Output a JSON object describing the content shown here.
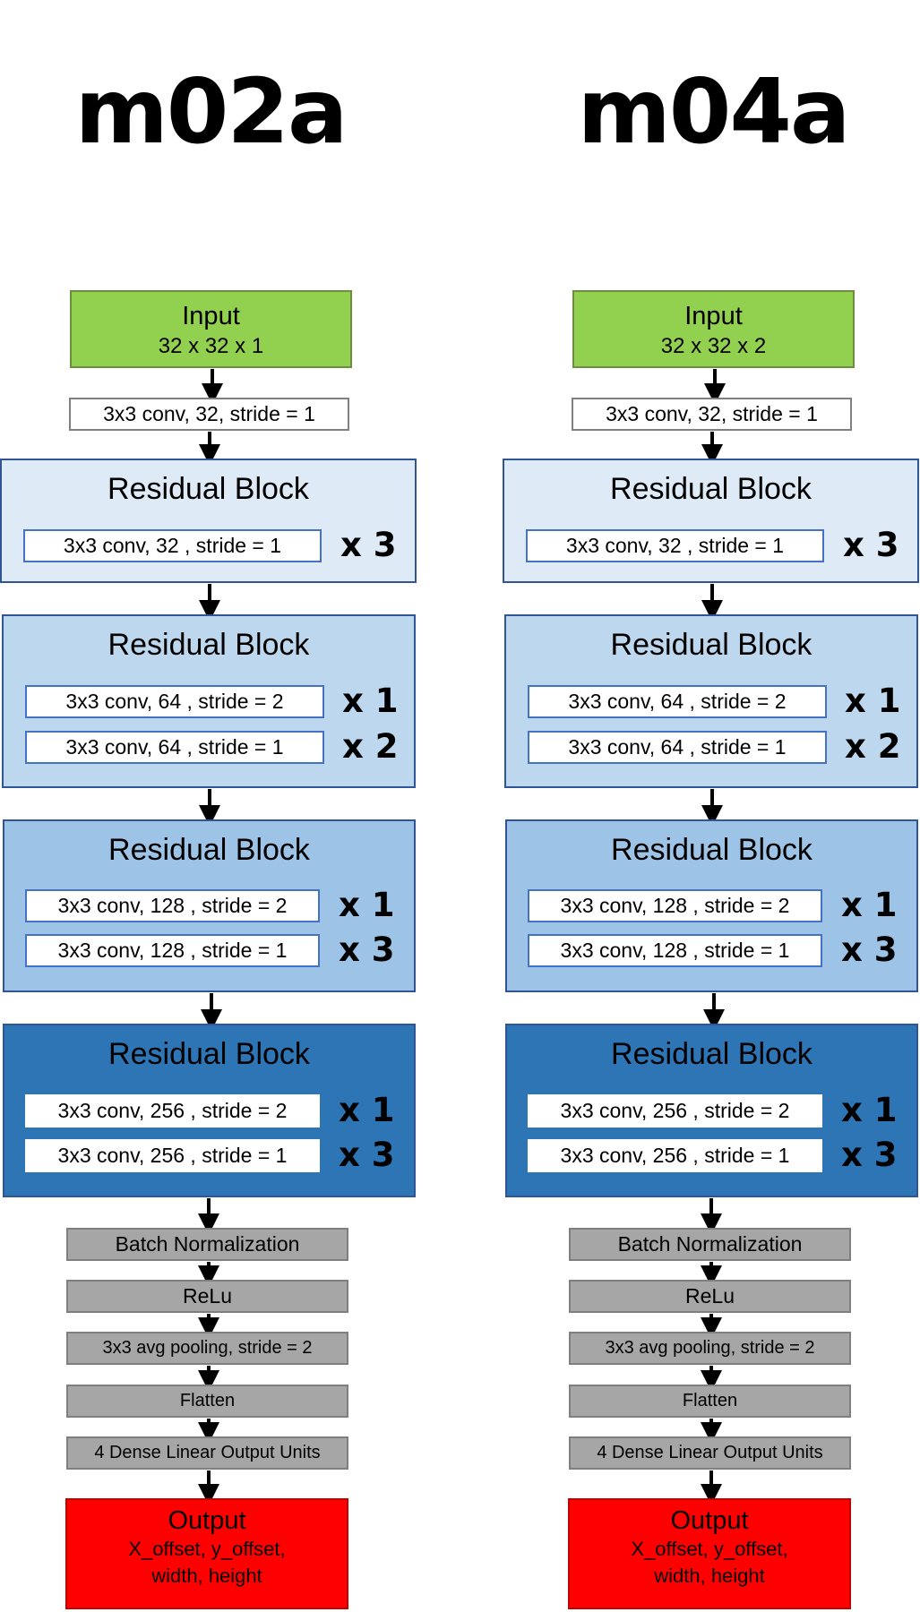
{
  "columns": [
    {
      "title": "m02a",
      "input": {
        "label": "Input",
        "shape": "32 x 32 x 1"
      },
      "first_conv": "3x3 conv, 32, stride = 1",
      "blocks": [
        {
          "title": "Residual Block",
          "layers": [
            {
              "label": "3x3 conv, 32 , stride = 1",
              "mult": "x 3"
            }
          ]
        },
        {
          "title": "Residual Block",
          "layers": [
            {
              "label": "3x3 conv, 64 , stride = 2",
              "mult": "x 1"
            },
            {
              "label": "3x3 conv, 64 , stride = 1",
              "mult": "x 2"
            }
          ]
        },
        {
          "title": "Residual Block",
          "layers": [
            {
              "label": "3x3 conv, 128 , stride = 2",
              "mult": "x 1"
            },
            {
              "label": "3x3 conv, 128 , stride = 1",
              "mult": "x 3"
            }
          ]
        },
        {
          "title": "Residual Block",
          "layers": [
            {
              "label": "3x3 conv, 256 , stride = 2",
              "mult": "x 1"
            },
            {
              "label": "3x3 conv, 256 , stride = 1",
              "mult": "x 3"
            }
          ]
        }
      ],
      "post": [
        "Batch Normalization",
        "ReLu",
        "3x3 avg pooling, stride = 2",
        "Flatten",
        "4 Dense Linear Output Units"
      ],
      "output": {
        "label": "Output",
        "line1": "X_offset, y_offset,",
        "line2": "width, height"
      }
    },
    {
      "title": "m04a",
      "input": {
        "label": "Input",
        "shape": "32 x 32 x 2"
      },
      "first_conv": "3x3 conv, 32, stride = 1",
      "blocks": [
        {
          "title": "Residual Block",
          "layers": [
            {
              "label": "3x3 conv, 32 , stride = 1",
              "mult": "x 3"
            }
          ]
        },
        {
          "title": "Residual Block",
          "layers": [
            {
              "label": "3x3 conv, 64 , stride = 2",
              "mult": "x 1"
            },
            {
              "label": "3x3 conv, 64 , stride = 1",
              "mult": "x 2"
            }
          ]
        },
        {
          "title": "Residual Block",
          "layers": [
            {
              "label": "3x3 conv, 128 , stride = 2",
              "mult": "x 1"
            },
            {
              "label": "3x3 conv, 128 , stride = 1",
              "mult": "x 3"
            }
          ]
        },
        {
          "title": "Residual Block",
          "layers": [
            {
              "label": "3x3 conv, 256 , stride = 2",
              "mult": "x 1"
            },
            {
              "label": "3x3 conv, 256 , stride = 1",
              "mult": "x 3"
            }
          ]
        }
      ],
      "post": [
        "Batch Normalization",
        "ReLu",
        "3x3 avg pooling, stride = 2",
        "Flatten",
        "4 Dense Linear Output Units"
      ],
      "output": {
        "label": "Output",
        "line1": "X_offset, y_offset,",
        "line2": "width, height"
      }
    }
  ],
  "colors": {
    "input": "#92d050",
    "block1": "#deebf7",
    "block2": "#bdd7ee",
    "block3": "#9dc3e6",
    "block4": "#2e75b6",
    "post": "#a6a6a6",
    "output": "#ff0000"
  }
}
